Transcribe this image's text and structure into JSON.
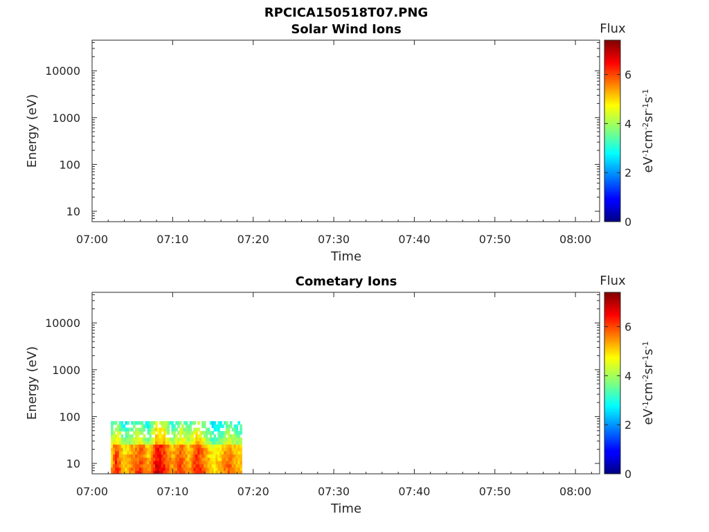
{
  "figure_title": "RPCICA150518T07.PNG",
  "panels": [
    {
      "title": "Solar Wind Ions",
      "xlabel": "Time",
      "ylabel": "Energy (eV)",
      "colorbar": {
        "label": "Flux",
        "unit_base": [
          "eV",
          "cm",
          "sr",
          "s"
        ],
        "unit_exp": [
          "-1",
          "-2",
          "-1",
          "-1"
        ]
      }
    },
    {
      "title": "Cometary Ions",
      "xlabel": "Time",
      "ylabel": "Energy (eV)",
      "colorbar": {
        "label": "Flux",
        "unit_base": [
          "eV",
          "cm",
          "sr",
          "s"
        ],
        "unit_exp": [
          "-1",
          "-2",
          "-1",
          "-1"
        ]
      }
    }
  ],
  "chart_data": [
    {
      "type": "heatmap",
      "title": "Solar Wind Ions",
      "xlabel": "Time",
      "ylabel": "Energy (eV)",
      "x_range": [
        "07:00",
        "08:03"
      ],
      "x_ticks": [
        "07:00",
        "07:10",
        "07:20",
        "07:30",
        "07:40",
        "07:50",
        "08:00"
      ],
      "y_scale": "log",
      "y_range": [
        6,
        45000
      ],
      "y_ticks": [
        "10",
        "100",
        "1000",
        "10000"
      ],
      "colorbar": {
        "label": "Flux",
        "range": [
          0,
          7.4
        ],
        "ticks": [
          "0",
          "2",
          "4",
          "6"
        ],
        "colormap": "jet"
      },
      "data": []
    },
    {
      "type": "heatmap",
      "title": "Cometary Ions",
      "xlabel": "Time",
      "ylabel": "Energy (eV)",
      "x_range": [
        "07:00",
        "08:03"
      ],
      "x_ticks": [
        "07:00",
        "07:10",
        "07:20",
        "07:30",
        "07:40",
        "07:50",
        "08:00"
      ],
      "y_scale": "log",
      "y_range": [
        6,
        45000
      ],
      "y_ticks": [
        "10",
        "100",
        "1000",
        "10000"
      ],
      "colorbar": {
        "label": "Flux",
        "range": [
          0,
          7.4
        ],
        "ticks": [
          "0",
          "2",
          "4",
          "6"
        ],
        "colormap": "jet"
      },
      "data_extent": {
        "time_start": "07:02:20",
        "time_end": "07:18:35",
        "energy_min": 6,
        "energy_max": 80
      },
      "profile": [
        {
          "t": "07:02:30",
          "low": 5.4,
          "mid": 4.3
        },
        {
          "t": "07:03:00",
          "low": 6.4,
          "mid": 5.0
        },
        {
          "t": "07:04:00",
          "low": 5.0,
          "mid": 3.8
        },
        {
          "t": "07:05:00",
          "low": 5.6,
          "mid": 4.2
        },
        {
          "t": "07:06:00",
          "low": 6.2,
          "mid": 4.7
        },
        {
          "t": "07:07:00",
          "low": 5.3,
          "mid": 3.8
        },
        {
          "t": "07:08:00",
          "low": 6.8,
          "mid": 5.4
        },
        {
          "t": "07:09:00",
          "low": 6.3,
          "mid": 5.2
        },
        {
          "t": "07:10:00",
          "low": 5.4,
          "mid": 4.1
        },
        {
          "t": "07:11:00",
          "low": 6.1,
          "mid": 4.9
        },
        {
          "t": "07:12:00",
          "low": 5.3,
          "mid": 4.2
        },
        {
          "t": "07:13:00",
          "low": 6.4,
          "mid": 5.3
        },
        {
          "t": "07:14:00",
          "low": 5.7,
          "mid": 4.5
        },
        {
          "t": "07:15:00",
          "low": 4.9,
          "mid": 3.6
        },
        {
          "t": "07:16:00",
          "low": 5.3,
          "mid": 3.9
        },
        {
          "t": "07:17:00",
          "low": 5.9,
          "mid": 4.6
        },
        {
          "t": "07:18:00",
          "low": 5.2,
          "mid": 4.0
        }
      ]
    }
  ],
  "colors": {
    "axis": "#262626",
    "background": "#ffffff"
  }
}
